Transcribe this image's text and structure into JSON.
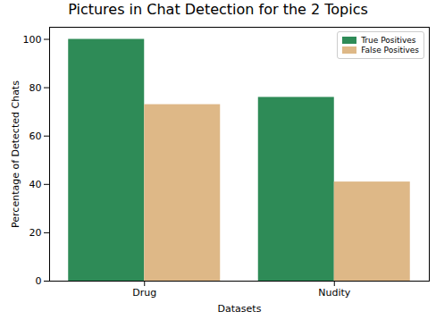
{
  "chart_data": {
    "type": "bar",
    "title": "Pictures in Chat Detection for the 2 Topics",
    "x_label": "Datasets",
    "y_label": "Percentage of Detected Chats",
    "categories": [
      "Drug",
      "Nudity"
    ],
    "series": [
      {
        "name": "True Positives",
        "color": "#2e8b57",
        "values": [
          100,
          76
        ]
      },
      {
        "name": "False Positives",
        "color": "#deb887",
        "values": [
          73,
          41
        ]
      }
    ],
    "ylim": [
      0,
      105
    ],
    "yticks": [
      0,
      20,
      40,
      60,
      80,
      100
    ],
    "legend": "upper right"
  }
}
